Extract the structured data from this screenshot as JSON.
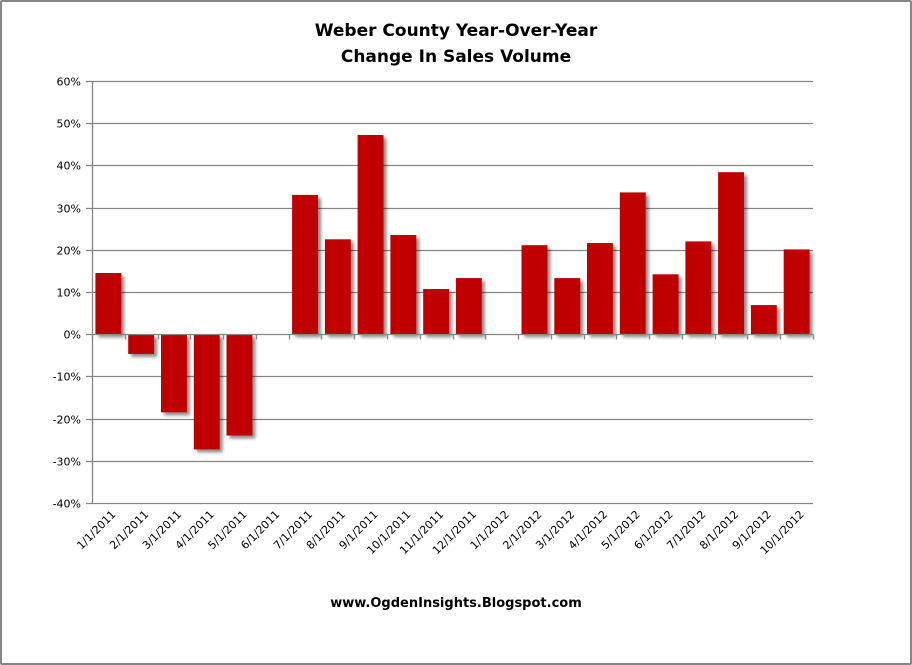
{
  "chart_data": {
    "type": "bar",
    "title": "Weber County Year-Over-Year Change In Sales Volume",
    "title_lines": [
      "Weber County Year-Over-Year",
      "Change In Sales Volume"
    ],
    "xlabel": "",
    "ylabel": "",
    "ylim": [
      -40,
      60
    ],
    "y_ticks": [
      "60%",
      "50%",
      "40%",
      "30%",
      "20%",
      "10%",
      "0%",
      "-10%",
      "-20%",
      "-30%",
      "-40%"
    ],
    "y_tick_values": [
      60,
      50,
      40,
      30,
      20,
      10,
      0,
      -10,
      -20,
      -30,
      -40
    ],
    "grid": true,
    "legend": "none",
    "bar_color": "#C00000",
    "categories": [
      "1/1/2011",
      "2/1/2011",
      "3/1/2011",
      "4/1/2011",
      "5/1/2011",
      "6/1/2011",
      "7/1/2011",
      "8/1/2011",
      "9/1/2011",
      "10/1/2011",
      "11/1/2011",
      "12/1/2011",
      "1/1/2012",
      "2/1/2012",
      "3/1/2012",
      "4/1/2012",
      "5/1/2012",
      "6/1/2012",
      "7/1/2012",
      "8/1/2012",
      "9/1/2012",
      "10/1/2012"
    ],
    "values": [
      14.5,
      -4.7,
      -18.5,
      -27.3,
      -24.0,
      0,
      33.0,
      22.5,
      47.2,
      23.5,
      10.7,
      13.3,
      0,
      21.1,
      13.3,
      21.6,
      33.6,
      14.2,
      22.0,
      38.4,
      6.9,
      20.1
    ],
    "value_unit": "%",
    "footer": "www.OgdenInsights.Blogspot.com"
  },
  "colors": {
    "bar": "#C00000",
    "grid": "#868686",
    "axis": "#868686",
    "border": "#868686"
  }
}
